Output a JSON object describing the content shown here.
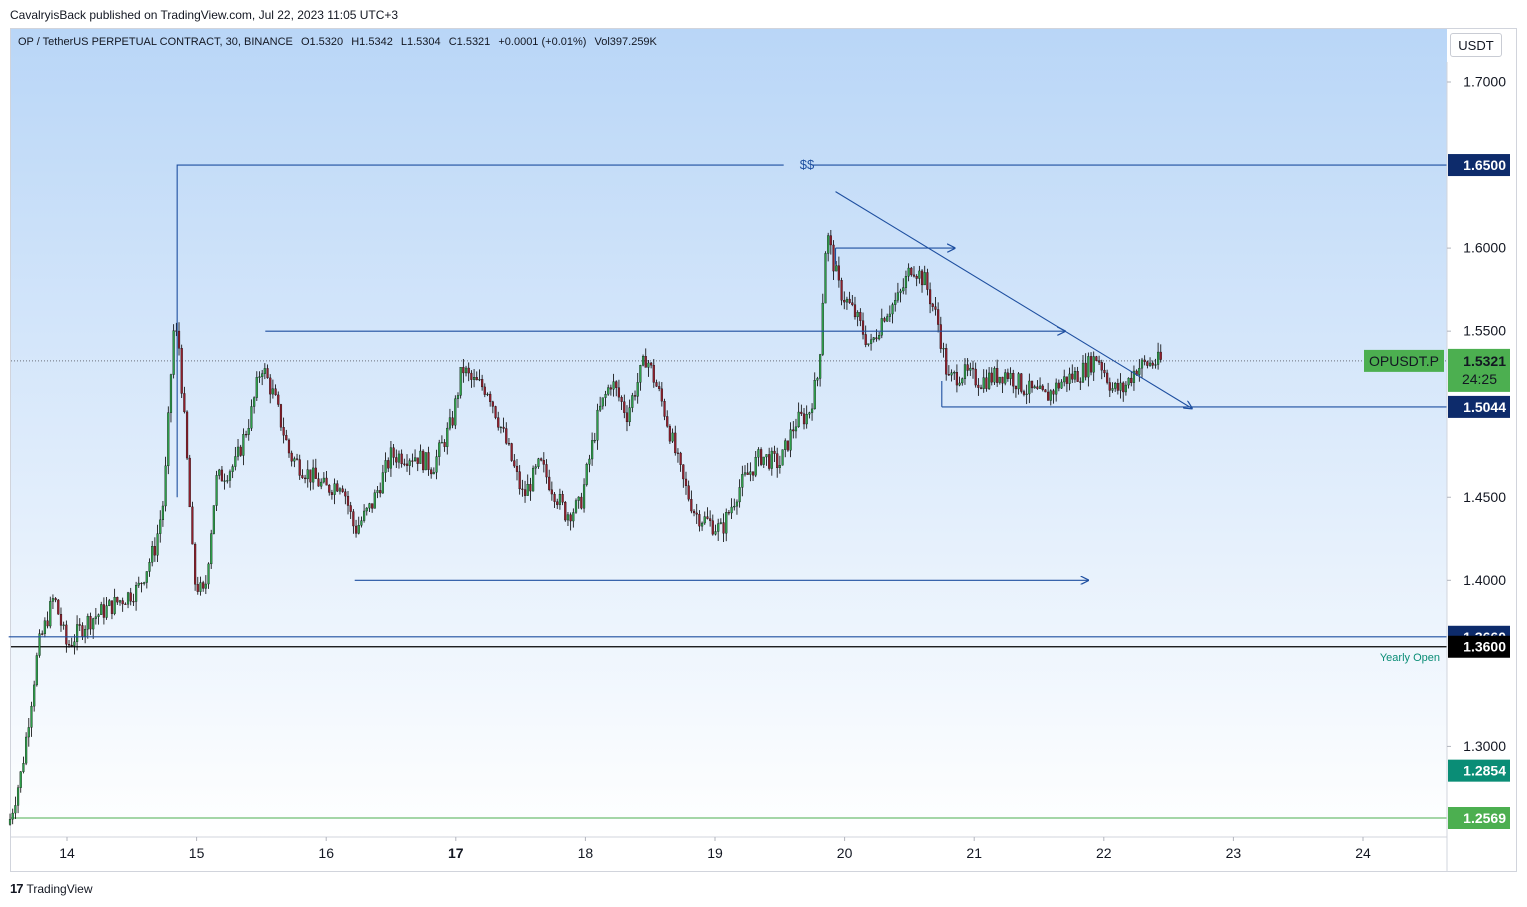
{
  "header": {
    "published": "CavalryisBack published on TradingView.com, Jul 22, 2023 11:05 UTC+3"
  },
  "legend": {
    "symbol": "OP / TetherUS PERPETUAL CONTRACT, 30, BINANCE",
    "open": "O1.5320",
    "high": "H1.5342",
    "low": "L1.5304",
    "close": "C1.5321",
    "change": "+0.0001 (+0.01%)",
    "volume": "Vol397.259K"
  },
  "currency_button": "USDT",
  "footer": {
    "brand": "TradingView",
    "logo": "17"
  },
  "colors": {
    "bg_top": "#b9d6f7",
    "bg_bottom": "#ffffff",
    "candle_up": "#2e9d4a",
    "candle_down": "#8e1f2c",
    "wick": "#000000",
    "drawing": "#1e4fa0",
    "badge_blue": "#0d2b6b",
    "badge_green_current": "#4caf50",
    "badge_teal": "#0a8d76",
    "yearly_open_line": "#000000",
    "green_line": "#4caf50"
  },
  "chart_data": {
    "type": "candlestick",
    "symbol": "OPUSDT.P",
    "interval": "30",
    "ylim": [
      1.25,
      1.72
    ],
    "y_ticks": [
      "1.7000",
      "1.6000",
      "1.5500",
      "1.4500",
      "1.4000",
      "1.3000"
    ],
    "x_ticks": [
      {
        "label": "14",
        "day": 14,
        "bold": false
      },
      {
        "label": "15",
        "day": 15,
        "bold": false
      },
      {
        "label": "16",
        "day": 16,
        "bold": false
      },
      {
        "label": "17",
        "day": 17,
        "bold": true
      },
      {
        "label": "18",
        "day": 18,
        "bold": false
      },
      {
        "label": "19",
        "day": 19,
        "bold": false
      },
      {
        "label": "20",
        "day": 20,
        "bold": false
      },
      {
        "label": "21",
        "day": 21,
        "bold": false
      },
      {
        "label": "22",
        "day": 22,
        "bold": false
      },
      {
        "label": "23",
        "day": 23,
        "bold": false
      },
      {
        "label": "24",
        "day": 24,
        "bold": false
      }
    ],
    "x_range_days": [
      13.55,
      24.65
    ],
    "anchors": [
      [
        13.55,
        1.253
      ],
      [
        13.65,
        1.285
      ],
      [
        13.78,
        1.36
      ],
      [
        13.9,
        1.39
      ],
      [
        14.0,
        1.36
      ],
      [
        14.15,
        1.375
      ],
      [
        14.35,
        1.385
      ],
      [
        14.55,
        1.395
      ],
      [
        14.68,
        1.42
      ],
      [
        14.75,
        1.45
      ],
      [
        14.82,
        1.55
      ],
      [
        14.86,
        1.545
      ],
      [
        14.92,
        1.48
      ],
      [
        14.98,
        1.4
      ],
      [
        15.06,
        1.39
      ],
      [
        15.15,
        1.46
      ],
      [
        15.3,
        1.47
      ],
      [
        15.42,
        1.5
      ],
      [
        15.5,
        1.53
      ],
      [
        15.6,
        1.51
      ],
      [
        15.72,
        1.475
      ],
      [
        15.85,
        1.465
      ],
      [
        16.0,
        1.455
      ],
      [
        16.12,
        1.46
      ],
      [
        16.22,
        1.43
      ],
      [
        16.35,
        1.445
      ],
      [
        16.5,
        1.475
      ],
      [
        16.7,
        1.475
      ],
      [
        16.82,
        1.468
      ],
      [
        16.97,
        1.495
      ],
      [
        17.05,
        1.528
      ],
      [
        17.12,
        1.52
      ],
      [
        17.25,
        1.515
      ],
      [
        17.4,
        1.48
      ],
      [
        17.52,
        1.45
      ],
      [
        17.65,
        1.47
      ],
      [
        17.75,
        1.455
      ],
      [
        17.85,
        1.44
      ],
      [
        17.96,
        1.445
      ],
      [
        18.1,
        1.5
      ],
      [
        18.2,
        1.52
      ],
      [
        18.32,
        1.5
      ],
      [
        18.47,
        1.535
      ],
      [
        18.6,
        1.505
      ],
      [
        18.75,
        1.46
      ],
      [
        18.85,
        1.44
      ],
      [
        19.05,
        1.43
      ],
      [
        19.18,
        1.455
      ],
      [
        19.35,
        1.475
      ],
      [
        19.5,
        1.47
      ],
      [
        19.62,
        1.495
      ],
      [
        19.72,
        1.5
      ],
      [
        19.8,
        1.525
      ],
      [
        19.86,
        1.61
      ],
      [
        19.96,
        1.575
      ],
      [
        20.08,
        1.56
      ],
      [
        20.2,
        1.54
      ],
      [
        20.3,
        1.56
      ],
      [
        20.42,
        1.57
      ],
      [
        20.52,
        1.59
      ],
      [
        20.62,
        1.58
      ],
      [
        20.72,
        1.555
      ],
      [
        20.8,
        1.52
      ],
      [
        20.9,
        1.525
      ],
      [
        21.05,
        1.52
      ],
      [
        21.25,
        1.525
      ],
      [
        21.4,
        1.515
      ],
      [
        21.55,
        1.51
      ],
      [
        21.68,
        1.52
      ],
      [
        21.82,
        1.525
      ],
      [
        21.95,
        1.535
      ],
      [
        22.07,
        1.515
      ],
      [
        22.15,
        1.515
      ],
      [
        22.25,
        1.528
      ],
      [
        22.32,
        1.53
      ],
      [
        22.45,
        1.532
      ]
    ],
    "candle_count": 430,
    "last_price": "1.5321",
    "countdown": "24:25",
    "price_levels": [
      {
        "label": "1.6500",
        "price": 1.65,
        "style": "blue"
      },
      {
        "label": "1.5044",
        "price": 1.5044,
        "style": "blue"
      },
      {
        "label": "1.3660",
        "price": 1.366,
        "style": "blue"
      },
      {
        "label": "1.3600",
        "price": 1.36,
        "style": "black"
      },
      {
        "label": "1.2854",
        "price": 1.2854,
        "style": "teal"
      },
      {
        "label": "1.2569",
        "price": 1.2569,
        "style": "green"
      }
    ],
    "annotations": {
      "dollar_label": "$$",
      "yearly_open_label": "Yearly Open",
      "symbol_badge": "OPUSDT.P"
    },
    "drawings": [
      {
        "kind": "polyline",
        "points": [
          [
            14.85,
            1.45
          ],
          [
            14.85,
            1.65
          ],
          [
            19.53,
            1.65
          ]
        ]
      },
      {
        "kind": "segment",
        "points": [
          [
            19.75,
            1.65
          ],
          [
            24.65,
            1.65
          ]
        ]
      },
      {
        "kind": "segment",
        "points": [
          [
            15.53,
            1.55
          ],
          [
            21.7,
            1.55
          ]
        ],
        "arrow": true
      },
      {
        "kind": "segment",
        "points": [
          [
            16.22,
            1.4
          ],
          [
            21.88,
            1.4
          ]
        ],
        "arrow": true
      },
      {
        "kind": "segment",
        "points": [
          [
            19.93,
            1.6
          ],
          [
            20.85,
            1.6
          ]
        ],
        "arrow": true
      },
      {
        "kind": "segment",
        "points": [
          [
            19.93,
            1.6
          ],
          [
            19.93,
            1.59
          ]
        ]
      },
      {
        "kind": "segment",
        "points": [
          [
            19.93,
            1.634
          ],
          [
            22.68,
            1.5035
          ]
        ],
        "arrow": true
      },
      {
        "kind": "segment",
        "points": [
          [
            20.75,
            1.5044
          ],
          [
            24.65,
            1.5044
          ]
        ]
      },
      {
        "kind": "segment",
        "points": [
          [
            20.75,
            1.5044
          ],
          [
            20.75,
            1.52
          ]
        ]
      },
      {
        "kind": "segment",
        "points": [
          [
            13.55,
            1.366
          ],
          [
            24.65,
            1.366
          ]
        ]
      }
    ]
  }
}
